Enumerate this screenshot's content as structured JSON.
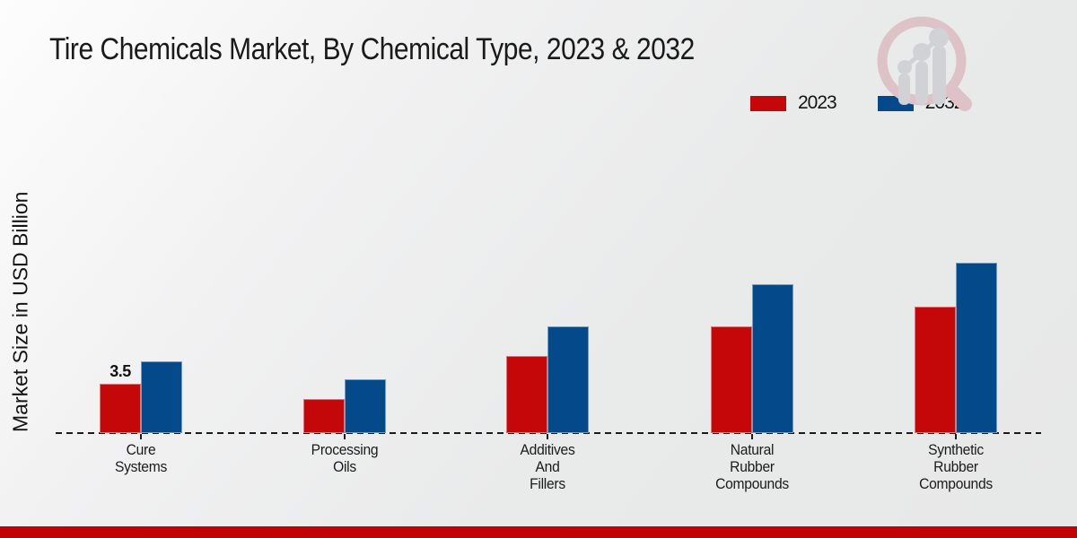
{
  "header": {
    "title": "Tire Chemicals Market, By Chemical Type, 2023 & 2032"
  },
  "chart_data": {
    "type": "bar",
    "title": "Tire Chemicals Market, By Chemical Type, 2023 & 2032",
    "xlabel": "",
    "ylabel": "Market Size in USD Billion",
    "ylim": [
      0,
      13
    ],
    "grid": false,
    "axis_style": "dashed-baseline-only",
    "legend_position": "top-right",
    "categories": [
      "Cure Systems",
      "Processing Oils",
      "Additives And Fillers",
      "Natural Rubber Compounds",
      "Synthetic Rubber Compounds"
    ],
    "category_label_lines": [
      [
        "Cure",
        "Systems"
      ],
      [
        "Processing",
        "Oils"
      ],
      [
        "Additives",
        "And",
        "Fillers"
      ],
      [
        "Natural",
        "Rubber",
        "Compounds"
      ],
      [
        "Synthetic",
        "Rubber",
        "Compounds"
      ]
    ],
    "series": [
      {
        "name": "2023",
        "color": "#c40708",
        "values": [
          3.5,
          2.4,
          5.5,
          7.6,
          9.0
        ]
      },
      {
        "name": "2032",
        "color": "#04498a",
        "values": [
          5.1,
          3.8,
          7.6,
          10.6,
          12.1
        ]
      }
    ],
    "annotations": [
      {
        "category_index": 0,
        "series_index": 0,
        "text": "3.5"
      }
    ]
  },
  "watermark": {
    "icon": "magnifier-growth-chart-logo",
    "ring_color": "#ddc2c7",
    "bars_color": "#d1d2d5"
  },
  "footer": {
    "bar_color": "#c10305"
  }
}
